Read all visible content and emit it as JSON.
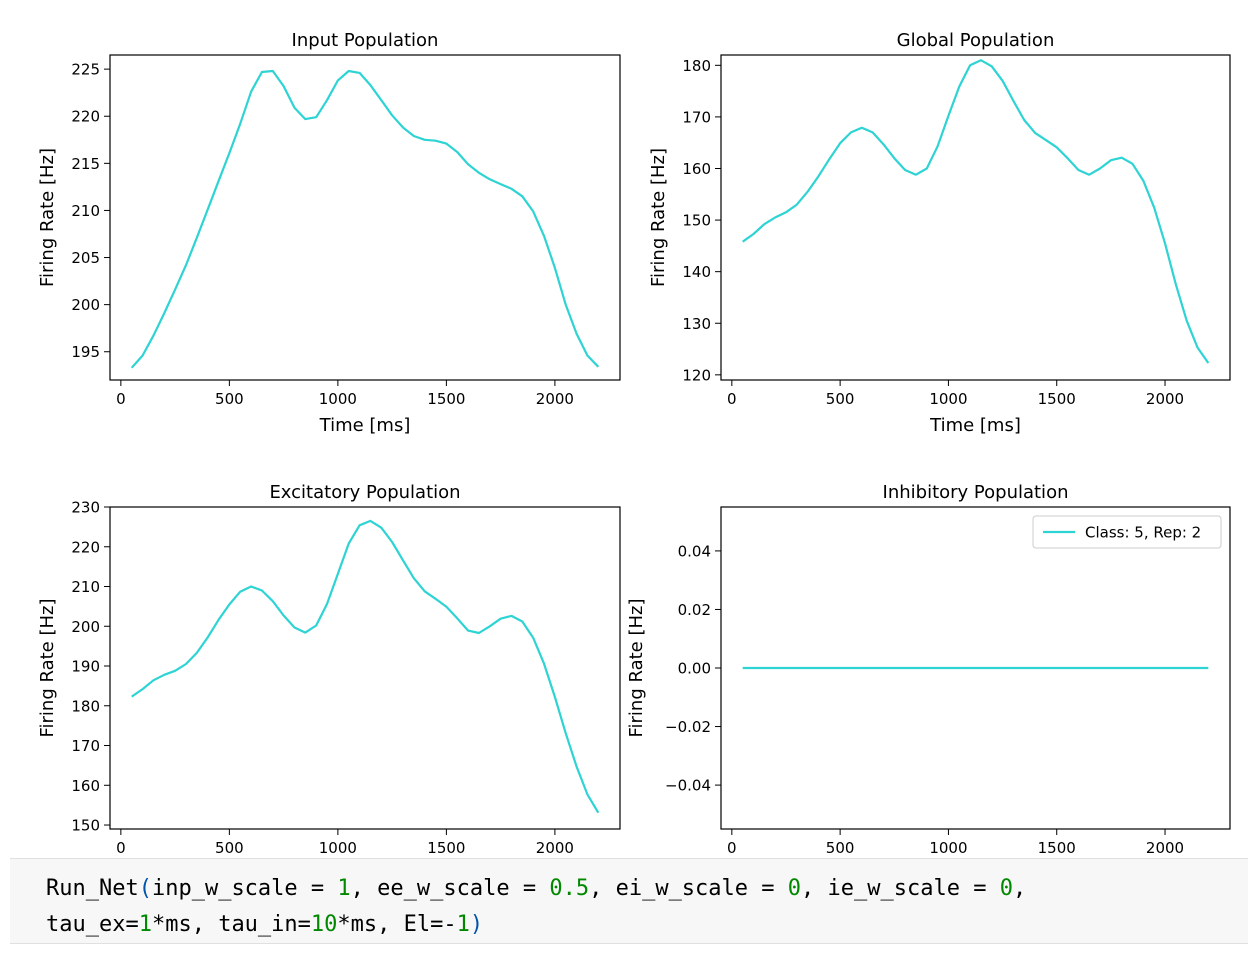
{
  "chart_data": [
    {
      "type": "line",
      "title": "Input Population",
      "xlabel": "Time [ms]",
      "ylabel": "Firing Rate [Hz]",
      "xlim": [
        -50,
        2300
      ],
      "ylim": [
        192,
        226.5
      ],
      "xticks": [
        0,
        500,
        1000,
        1500,
        2000
      ],
      "yticks": [
        195,
        200,
        205,
        210,
        215,
        220,
        225
      ],
      "ytick_labels": [
        "195",
        "200",
        "205",
        "210",
        "215",
        "220",
        "225"
      ],
      "grid": false,
      "color": "#2ed3d3",
      "series": [
        {
          "x": [
            50,
            100,
            150,
            200,
            250,
            300,
            350,
            400,
            450,
            500,
            550,
            600,
            650,
            700,
            750,
            800,
            850,
            900,
            950,
            1000,
            1050,
            1100,
            1150,
            1200,
            1250,
            1300,
            1350,
            1400,
            1450,
            1500,
            1550,
            1600,
            1650,
            1700,
            1750,
            1800,
            1850,
            1900,
            1950,
            2000,
            2050,
            2100,
            2150,
            2200
          ],
          "values": [
            193.3,
            194.6,
            196.7,
            199.1,
            201.6,
            204.2,
            207.1,
            210.1,
            213.1,
            216.1,
            219.2,
            222.6,
            224.7,
            224.8,
            223.2,
            220.9,
            219.7,
            219.9,
            221.7,
            223.8,
            224.8,
            224.6,
            223.3,
            221.7,
            220.1,
            218.8,
            217.9,
            217.5,
            217.4,
            217.1,
            216.2,
            214.9,
            214.0,
            213.3,
            212.8,
            212.3,
            211.5,
            209.9,
            207.3,
            203.9,
            200.0,
            196.9,
            194.6,
            193.4
          ]
        }
      ]
    },
    {
      "type": "line",
      "title": "Global Population",
      "xlabel": "Time [ms]",
      "ylabel": "Firing Rate [Hz]",
      "xlim": [
        -50,
        2300
      ],
      "ylim": [
        119,
        182
      ],
      "xticks": [
        0,
        500,
        1000,
        1500,
        2000
      ],
      "yticks": [
        120,
        130,
        140,
        150,
        160,
        170,
        180
      ],
      "ytick_labels": [
        "120",
        "130",
        "140",
        "150",
        "160",
        "170",
        "180"
      ],
      "grid": false,
      "color": "#2ed3d3",
      "series": [
        {
          "x": [
            50,
            100,
            150,
            200,
            250,
            300,
            350,
            400,
            450,
            500,
            550,
            600,
            650,
            700,
            750,
            800,
            850,
            900,
            950,
            1000,
            1050,
            1100,
            1150,
            1200,
            1250,
            1300,
            1350,
            1400,
            1450,
            1500,
            1550,
            1600,
            1650,
            1700,
            1750,
            1800,
            1850,
            1900,
            1950,
            2000,
            2050,
            2100,
            2150,
            2200
          ],
          "values": [
            145.8,
            147.3,
            149.2,
            150.5,
            151.5,
            153.0,
            155.5,
            158.5,
            161.8,
            164.9,
            167.0,
            167.9,
            167.0,
            164.7,
            162.0,
            159.7,
            158.8,
            160.0,
            164.3,
            170.2,
            175.9,
            180.0,
            181.0,
            179.8,
            177.0,
            173.1,
            169.4,
            166.9,
            165.5,
            164.1,
            162.0,
            159.7,
            158.8,
            160.0,
            161.6,
            162.1,
            160.9,
            157.6,
            152.4,
            145.5,
            137.5,
            130.5,
            125.3,
            122.3
          ]
        }
      ]
    },
    {
      "type": "line",
      "title": "Excitatory Population",
      "xlabel": "",
      "ylabel": "Firing Rate [Hz]",
      "xlim": [
        -50,
        2300
      ],
      "ylim": [
        149,
        230
      ],
      "xticks": [
        0,
        500,
        1000,
        1500,
        2000
      ],
      "yticks": [
        150,
        160,
        170,
        180,
        190,
        200,
        210,
        220,
        230
      ],
      "ytick_labels": [
        "150",
        "160",
        "170",
        "180",
        "190",
        "200",
        "210",
        "220",
        "230"
      ],
      "grid": false,
      "color": "#2ed3d3",
      "series": [
        {
          "x": [
            50,
            100,
            150,
            200,
            250,
            300,
            350,
            400,
            450,
            500,
            550,
            600,
            650,
            700,
            750,
            800,
            850,
            900,
            950,
            1000,
            1050,
            1100,
            1150,
            1200,
            1250,
            1300,
            1350,
            1400,
            1450,
            1500,
            1550,
            1600,
            1650,
            1700,
            1750,
            1800,
            1850,
            1900,
            1950,
            2000,
            2050,
            2100,
            2150,
            2200
          ],
          "values": [
            182.3,
            184.2,
            186.4,
            187.8,
            188.8,
            190.5,
            193.3,
            197.2,
            201.6,
            205.5,
            208.7,
            210.0,
            209.0,
            206.3,
            202.7,
            199.7,
            198.4,
            200.2,
            205.6,
            213.2,
            220.8,
            225.4,
            226.5,
            224.8,
            221.2,
            216.6,
            212.1,
            208.8,
            206.9,
            204.9,
            202.0,
            198.9,
            198.3,
            200.0,
            201.9,
            202.6,
            201.2,
            197.1,
            190.6,
            182.2,
            173.1,
            164.7,
            157.7,
            153.1
          ]
        }
      ]
    },
    {
      "type": "line",
      "title": "Inhibitory Population",
      "xlabel": "",
      "ylabel": "Firing Rate [Hz]",
      "xlim": [
        -50,
        2300
      ],
      "ylim": [
        -0.055,
        0.055
      ],
      "xticks": [
        0,
        500,
        1000,
        1500,
        2000
      ],
      "yticks": [
        -0.04,
        -0.02,
        0.0,
        0.02,
        0.04
      ],
      "ytick_labels": [
        "−0.04",
        "−0.02",
        "0.00",
        "0.02",
        "0.04"
      ],
      "grid": false,
      "color": "#2ed3d3",
      "legend_position": "upper right",
      "series": [
        {
          "name": "Class: 5, Rep: 2",
          "x": [
            50,
            2200
          ],
          "values": [
            0,
            0
          ]
        }
      ]
    }
  ],
  "code_cell": {
    "lines": [
      [
        {
          "t": "Run_Net",
          "c": "plain"
        },
        {
          "t": "(",
          "c": "paren"
        },
        {
          "t": "inp_w_scale = ",
          "c": "plain"
        },
        {
          "t": "1",
          "c": "num"
        },
        {
          "t": ", ee_w_scale = ",
          "c": "plain"
        },
        {
          "t": "0.5",
          "c": "num"
        },
        {
          "t": ", ei_w_scale = ",
          "c": "plain"
        },
        {
          "t": "0",
          "c": "num"
        },
        {
          "t": ", ie_w_scale = ",
          "c": "plain"
        },
        {
          "t": "0",
          "c": "num"
        },
        {
          "t": ",",
          "c": "plain"
        }
      ],
      [
        {
          "t": "tau_ex=",
          "c": "plain"
        },
        {
          "t": "1",
          "c": "num"
        },
        {
          "t": "*ms, tau_in=",
          "c": "plain"
        },
        {
          "t": "10",
          "c": "num"
        },
        {
          "t": "*ms, El=-",
          "c": "plain"
        },
        {
          "t": "1",
          "c": "num"
        },
        {
          "t": ")",
          "c": "paren"
        }
      ]
    ]
  }
}
